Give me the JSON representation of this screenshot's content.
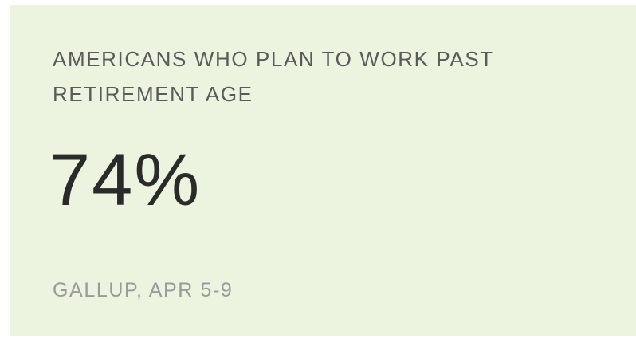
{
  "card": {
    "title": "AMERICANS WHO PLAN TO WORK PAST RETIREMENT AGE",
    "stat_value": "74%",
    "source": "GALLUP, APR 5-9"
  },
  "colors": {
    "card_background": "#ecf3de",
    "title_text": "#5a5a5a",
    "stat_text": "#2a2a2a",
    "source_text": "#9a9a9a"
  }
}
